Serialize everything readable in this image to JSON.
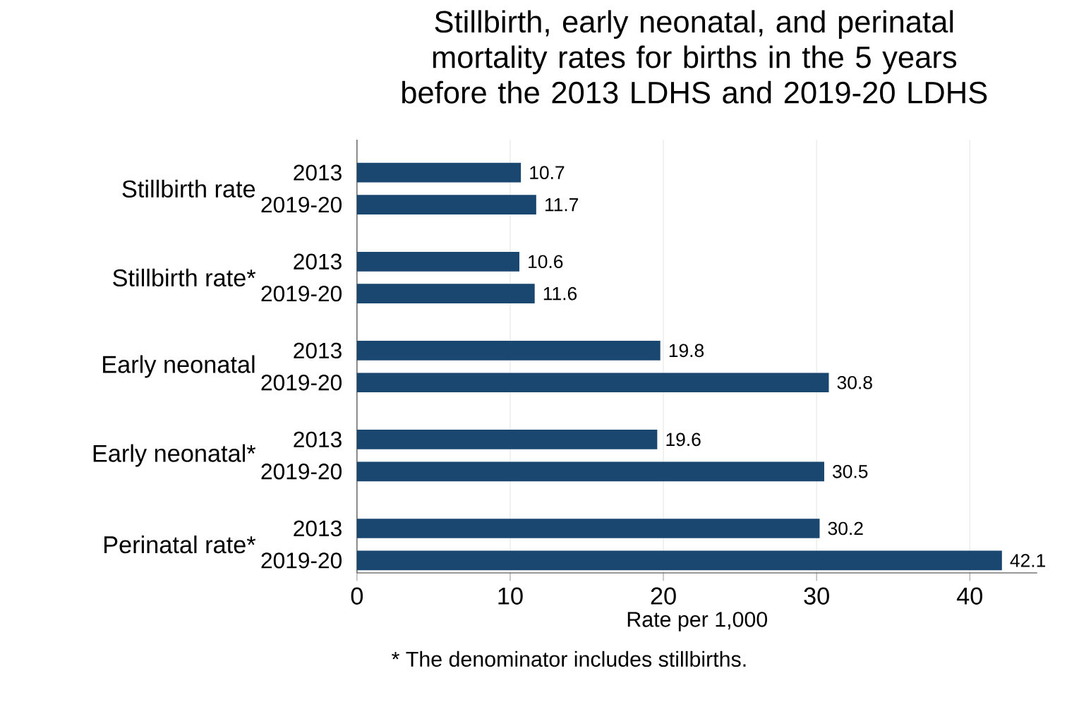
{
  "chart_data": {
    "type": "bar",
    "orientation": "horizontal",
    "title": "Stillbirth, early neonatal, and perinatal mortality rates for births in the 5 years before the 2013 LDHS and 2019-20 LDHS",
    "categories": [
      "Stillbirth rate",
      "Stillbirth rate*",
      "Early neonatal",
      "Early neonatal*",
      "Perinatal rate*"
    ],
    "series": [
      {
        "name": "2013",
        "color": "#1a476f",
        "values": [
          10.7,
          10.6,
          19.8,
          19.6,
          30.2
        ]
      },
      {
        "name": "2019-20",
        "color": "#1a476f",
        "values": [
          11.7,
          11.6,
          30.8,
          30.5,
          42.1
        ]
      }
    ],
    "xlabel": "Rate per 1,000",
    "xlim": [
      0,
      44.4
    ],
    "xticks": [
      0,
      10,
      20,
      30,
      40
    ],
    "grid": "x",
    "data_labels": true,
    "annotations": [
      "* The denominator includes stillbirths."
    ]
  }
}
